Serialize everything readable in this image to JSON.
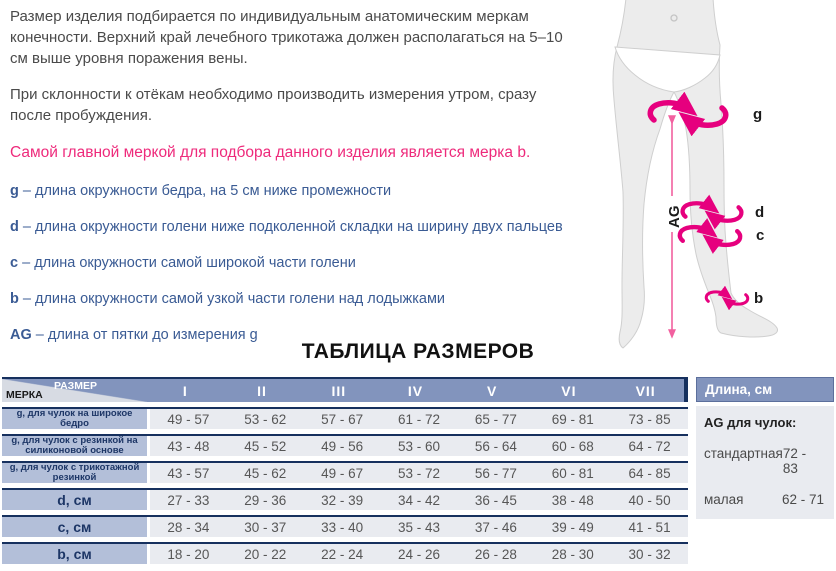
{
  "intro": {
    "paragraph1": "Размер изделия подбирается по индивидуальным анатомическим меркам конечности. Верхний край лечебного трикотажа должен располагаться на 5–10 см выше уровня поражения вены.",
    "paragraph2": "При склонности к отёкам необходимо производить измерения утром, сразу после пробуждения.",
    "highlight": "Самой главной меркой для подбора данного изделия является мерка b."
  },
  "measurements": [
    {
      "abbr": "g",
      "text": "– длина окружности бедра, на 5 см ниже промежности"
    },
    {
      "abbr": "d",
      "text": "– длина окружности голени ниже подколенной складки на ширину двух пальцев"
    },
    {
      "abbr": "c",
      "text": "– длина окружности самой широкой части голени"
    },
    {
      "abbr": "b",
      "text": "– длина окружности самой узкой части голени над лодыжками"
    },
    {
      "abbr": "AG",
      "text": "– длина от пятки до измерения g"
    }
  ],
  "diagram": {
    "labels": {
      "g": "g",
      "d": "d",
      "c": "c",
      "b": "b",
      "ag": "AG"
    }
  },
  "table": {
    "title": "ТАБЛИЦА РАЗМЕРОВ",
    "corner": {
      "top": "РАЗМЕР",
      "bottom": "МЕРКА"
    },
    "columns": [
      "I",
      "II",
      "III",
      "IV",
      "V",
      "VI",
      "VII"
    ],
    "rows": [
      {
        "label": "g, для чулок на широкое бедро",
        "small": true,
        "values": [
          "49 - 57",
          "53 - 62",
          "57 - 67",
          "61 - 72",
          "65 - 77",
          "69 - 81",
          "73 - 85"
        ]
      },
      {
        "label": "g, для чулок с резинкой на силиконовой основе",
        "small": true,
        "values": [
          "43 - 48",
          "45 - 52",
          "49 - 56",
          "53 - 60",
          "56 - 64",
          "60 - 68",
          "64 - 72"
        ]
      },
      {
        "label": "g, для чулок с трикотажной резинкой",
        "small": true,
        "values": [
          "43 - 57",
          "45 - 62",
          "49 - 67",
          "53 - 72",
          "56 - 77",
          "60 - 81",
          "64 - 85"
        ]
      },
      {
        "label": "d, см",
        "small": false,
        "values": [
          "27 - 33",
          "29 - 36",
          "32 - 39",
          "34 - 42",
          "36 - 45",
          "38 - 48",
          "40 - 50"
        ]
      },
      {
        "label": "c, см",
        "small": false,
        "values": [
          "28 - 34",
          "30 - 37",
          "33 - 40",
          "35 - 43",
          "37 - 46",
          "39 - 49",
          "41 - 51"
        ]
      },
      {
        "label": "b, см",
        "small": false,
        "values": [
          "18 - 20",
          "20 - 22",
          "22 - 24",
          "24 - 26",
          "26 - 28",
          "28 - 30",
          "30 - 32"
        ]
      }
    ]
  },
  "length_panel": {
    "header": "Длина, см",
    "subtitle": "AG для чулок:",
    "rows": [
      {
        "label": "стандартная",
        "value": "72 - 83"
      },
      {
        "label": "малая",
        "value": "62 - 71"
      }
    ]
  },
  "colors": {
    "accent_pink": "#e6007e",
    "accent_pink_light": "#f2609f",
    "heading_pink": "#ee2a7b",
    "definition_blue": "#3a5b94",
    "table_header_blue": "#8294bd",
    "row_label_blue": "#b3bfd9",
    "cell_gray": "#e9ebf0",
    "dark_border_navy": "#16305e",
    "body_text": "#4a4a4a"
  }
}
